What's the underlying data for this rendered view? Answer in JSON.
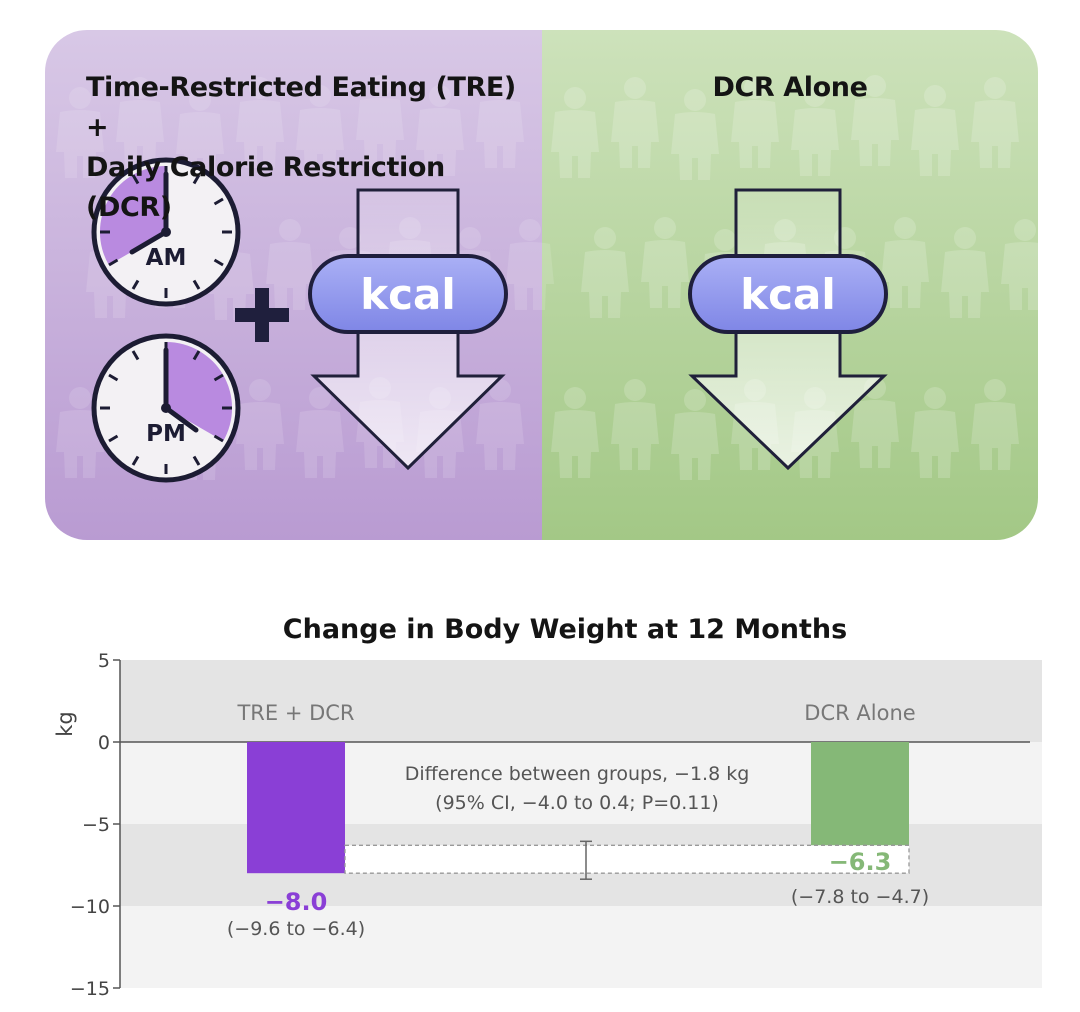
{
  "infographic": {
    "left_panel": {
      "title_line1": "Time-Restricted Eating (TRE) +",
      "title_line2": "Daily Calorie Restriction (DCR)",
      "clock_am_label": "AM",
      "clock_pm_label": "PM",
      "kcal_label": "kcal",
      "plus_symbol": "+"
    },
    "right_panel": {
      "title": "DCR Alone",
      "kcal_label": "kcal"
    },
    "colors": {
      "purple_panel": "#c4a8d8",
      "green_panel": "#a9cc8e",
      "clock_fill": "#b98ae0",
      "kcal_pill": "#8c93ec"
    }
  },
  "chart_data": {
    "type": "bar",
    "title": "Change in Body Weight at 12 Months",
    "ylabel": "kg",
    "ylim": [
      -15,
      5
    ],
    "yticks": [
      5,
      0,
      -5,
      -10,
      -15
    ],
    "ytick_labels": [
      "5",
      "0",
      "−5",
      "−10",
      "−15"
    ],
    "categories": [
      "TRE + DCR",
      "DCR Alone"
    ],
    "values": [
      -8.0,
      -6.3
    ],
    "value_labels": [
      "−8.0",
      "−6.3"
    ],
    "ci_labels": [
      "(−9.6 to −6.4)",
      "(−7.8 to −4.7)"
    ],
    "colors": [
      "#8a3fd6",
      "#85b877"
    ],
    "difference": {
      "line1": "Difference between groups, −1.8 kg",
      "line2": "(95% CI, −4.0 to 0.4; P=0.11)",
      "value": -1.8,
      "ci_low": -4.0,
      "ci_high": 0.4
    }
  }
}
